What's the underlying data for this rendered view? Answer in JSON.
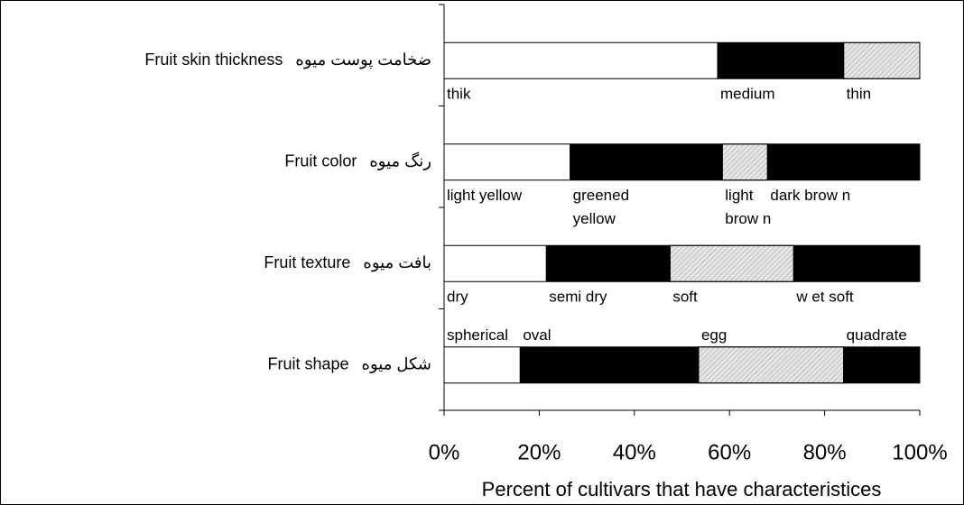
{
  "chart_data": {
    "type": "bar",
    "orientation": "horizontal",
    "stacked": true,
    "xlabel": "Percent of cultivars that have characteristices",
    "xlim": [
      0,
      100
    ],
    "xticks": [
      {
        "value": 0,
        "label": "0%"
      },
      {
        "value": 20,
        "label": "20%"
      },
      {
        "value": 40,
        "label": "40%"
      },
      {
        "value": 60,
        "label": "60%"
      },
      {
        "value": 80,
        "label": "80%"
      },
      {
        "value": 100,
        "label": "100%"
      }
    ],
    "rows": [
      {
        "category": "Fruit skin thickness",
        "category_fa": "ضخامت پوست میوه",
        "label_position": "below",
        "segments": [
          {
            "label": [
              "thik"
            ],
            "value": 57.5,
            "color": "#ffffff",
            "hatched": false
          },
          {
            "label": [
              "medium"
            ],
            "value": 26.5,
            "color": "#000000",
            "hatched": false
          },
          {
            "label": [
              "thin"
            ],
            "value": 16,
            "color": "#e6e6e6",
            "hatched": true
          }
        ]
      },
      {
        "category": "Fruit color",
        "category_fa": "رنگ میوه",
        "label_position": "below",
        "segments": [
          {
            "label": [
              "light yellow"
            ],
            "value": 26.5,
            "color": "#ffffff",
            "hatched": false
          },
          {
            "label": [
              "greened",
              "yellow"
            ],
            "value": 32,
            "color": "#000000",
            "hatched": false
          },
          {
            "label": [
              "light",
              "brow n"
            ],
            "value": 9.5,
            "color": "#e6e6e6",
            "hatched": true
          },
          {
            "label": [
              "dark brow n"
            ],
            "value": 32,
            "color": "#000000",
            "hatched": false
          }
        ]
      },
      {
        "category": "Fruit texture",
        "category_fa": "بافت میوه",
        "label_position": "below",
        "segments": [
          {
            "label": [
              "dry"
            ],
            "value": 21.5,
            "color": "#ffffff",
            "hatched": false
          },
          {
            "label": [
              "semi dry"
            ],
            "value": 26,
            "color": "#000000",
            "hatched": false
          },
          {
            "label": [
              "soft"
            ],
            "value": 26,
            "color": "#e6e6e6",
            "hatched": true
          },
          {
            "label": [
              "w et soft"
            ],
            "value": 26.5,
            "color": "#000000",
            "hatched": false
          }
        ]
      },
      {
        "category": "Fruit shape",
        "category_fa": "شکل میوه",
        "label_position": "above",
        "segments": [
          {
            "label": [
              "spherical"
            ],
            "value": 16,
            "color": "#ffffff",
            "hatched": false
          },
          {
            "label": [
              "oval"
            ],
            "value": 37.5,
            "color": "#000000",
            "hatched": false
          },
          {
            "label": [
              "egg"
            ],
            "value": 30.5,
            "color": "#e6e6e6",
            "hatched": true
          },
          {
            "label": [
              "quadrate"
            ],
            "value": 16,
            "color": "#000000",
            "hatched": false
          }
        ]
      }
    ]
  }
}
